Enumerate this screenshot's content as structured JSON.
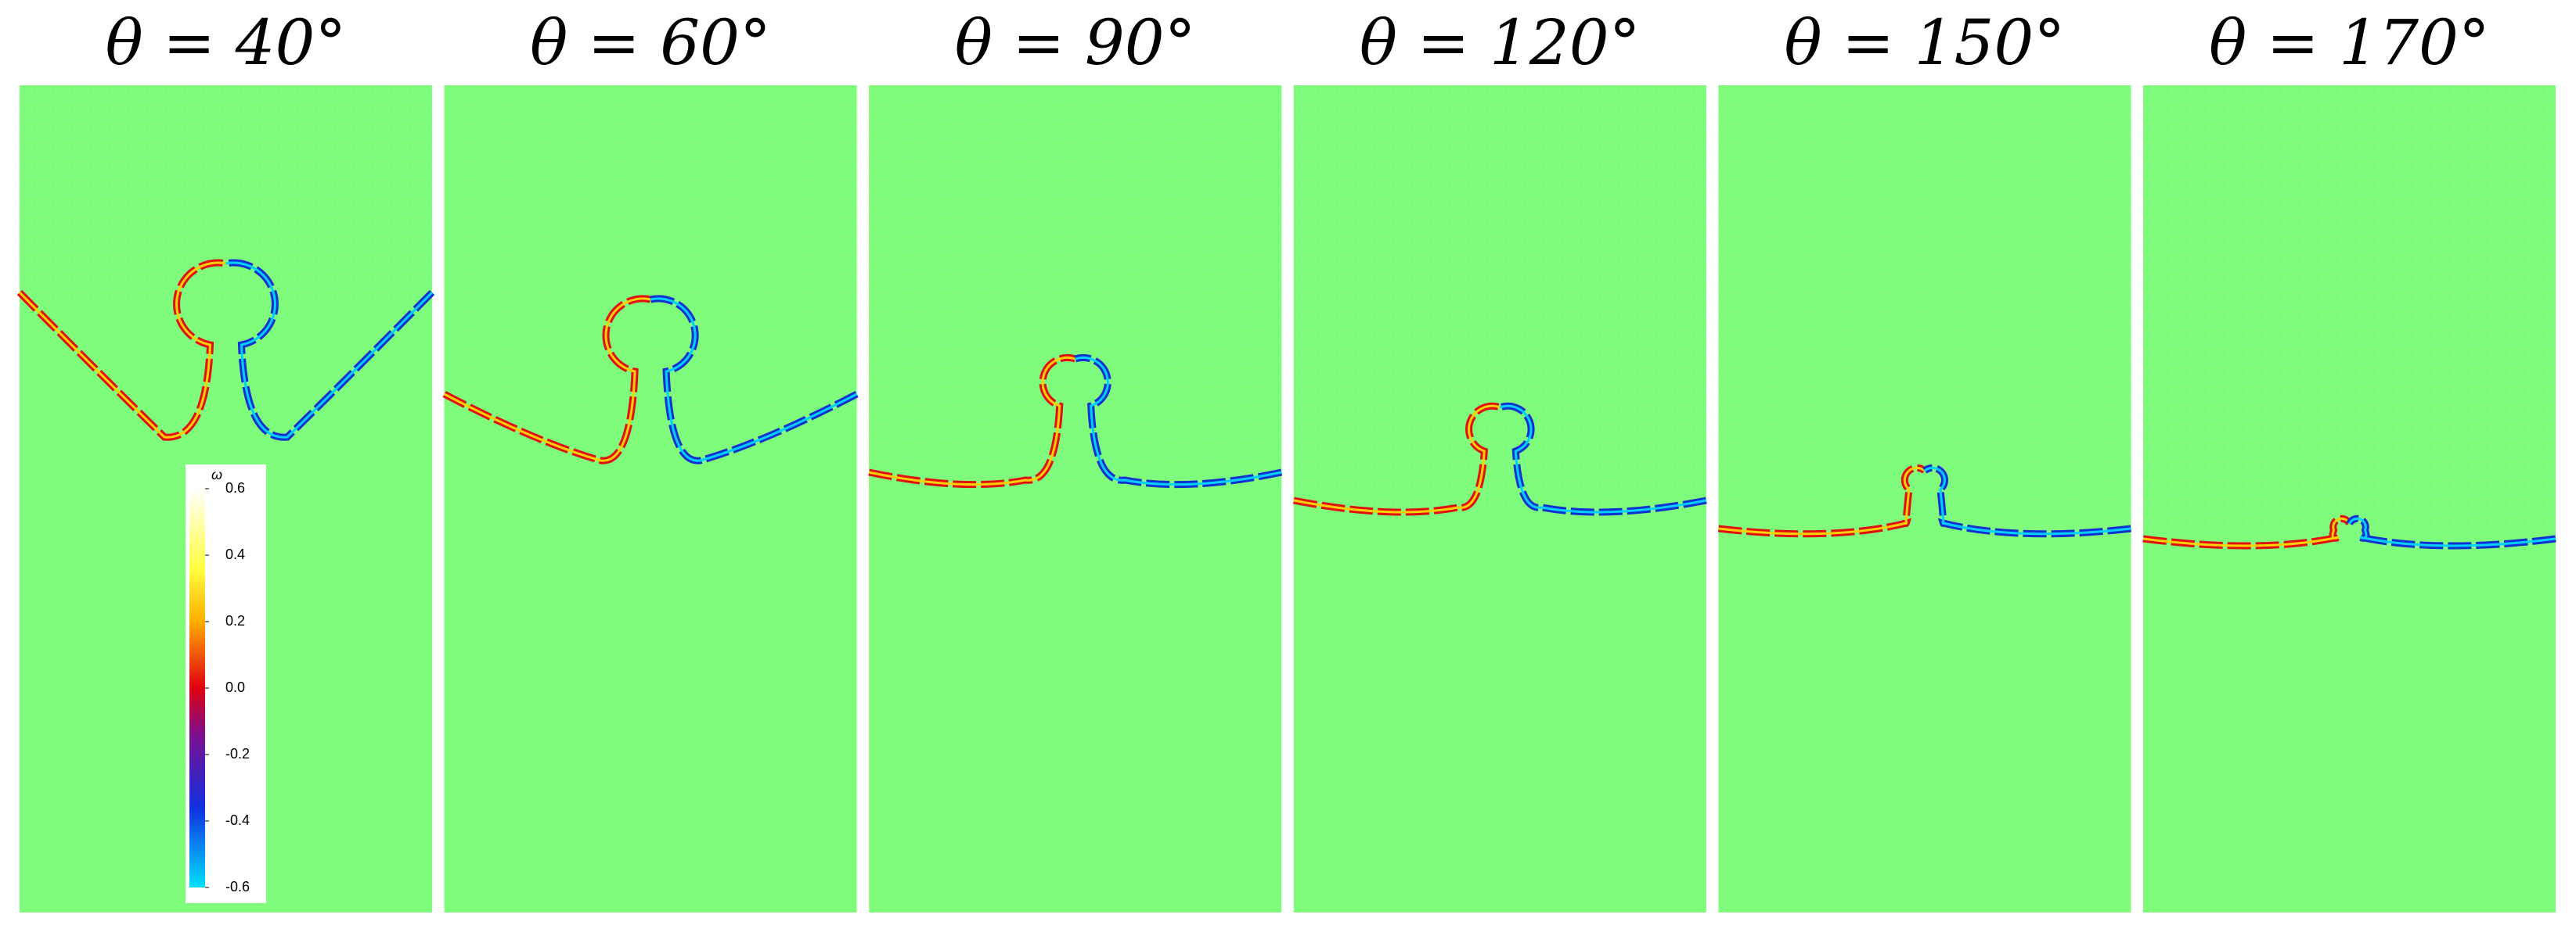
{
  "panels": [
    {
      "title": "θ = 40°"
    },
    {
      "title": "θ = 60°"
    },
    {
      "title": "θ = 90°"
    },
    {
      "title": "θ = 120°"
    },
    {
      "title": "θ = 150°"
    },
    {
      "title": "θ = 170°"
    }
  ],
  "colorbar": {
    "label": "ω",
    "ticks": [
      0.6,
      0.4,
      0.2,
      {
        "value": 0,
        "label": "0.0"
      },
      -0.2,
      -0.4,
      -0.6
    ]
  }
}
